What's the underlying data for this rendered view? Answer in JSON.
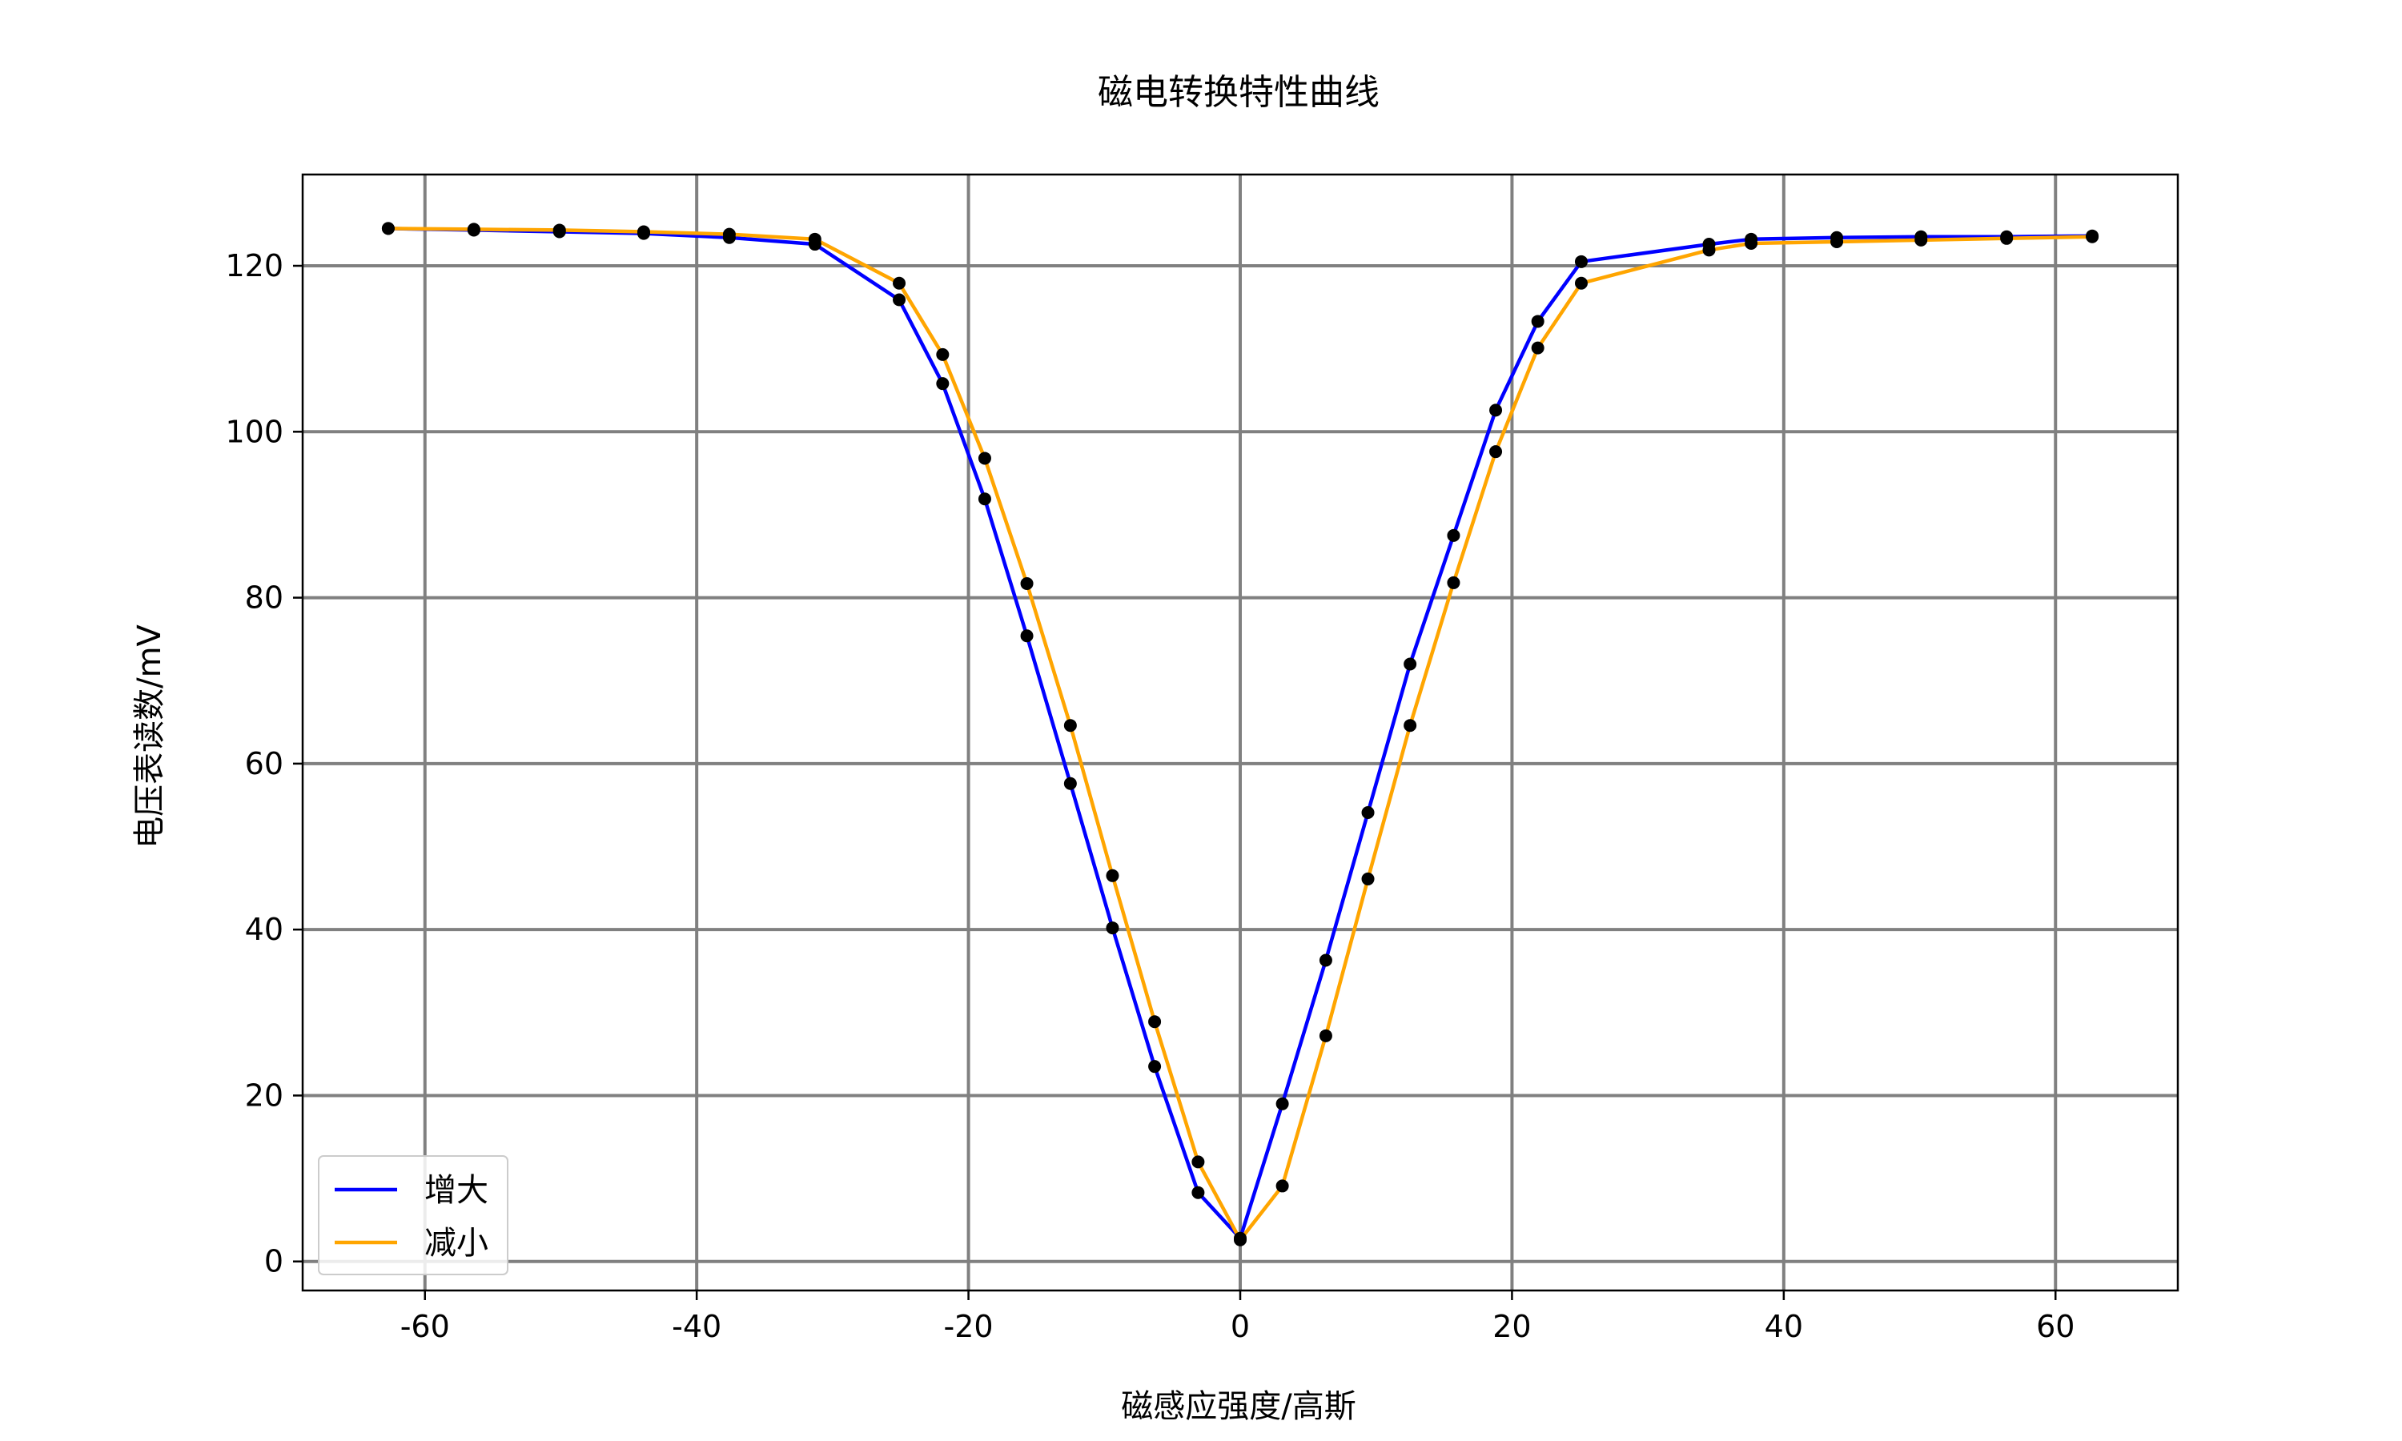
{
  "chart_data": {
    "type": "line",
    "title": "磁电转换特性曲线",
    "xlabel": "磁感应强度/高斯",
    "ylabel": "电压表读数/mV",
    "xlim": [
      -69,
      69
    ],
    "ylim": [
      -3.5,
      131
    ],
    "xticks": [
      -60,
      -40,
      -20,
      0,
      20,
      40,
      60
    ],
    "yticks": [
      0,
      20,
      40,
      60,
      80,
      100,
      120
    ],
    "grid": true,
    "legend_position": "lower-left",
    "marker_color": "#000000",
    "series": [
      {
        "name": "增大",
        "color": "#0000ff",
        "x": [
          -62.7,
          -56.4,
          -50.1,
          -43.9,
          -37.6,
          -31.3,
          -25.1,
          -21.9,
          -18.8,
          -15.7,
          -12.5,
          -9.4,
          -6.3,
          -3.1,
          0,
          3.1,
          6.3,
          9.4,
          12.5,
          15.7,
          18.8,
          21.9,
          25.1,
          34.5,
          37.6,
          43.9,
          50.1,
          56.4,
          62.7
        ],
        "y": [
          124.5,
          124.3,
          124.1,
          123.9,
          123.4,
          122.6,
          115.9,
          105.8,
          91.9,
          75.4,
          57.6,
          40.2,
          23.5,
          8.3,
          2.8,
          19.0,
          36.3,
          54.1,
          72.0,
          87.5,
          102.6,
          113.3,
          120.5,
          122.6,
          123.2,
          123.4,
          123.5,
          123.5,
          123.6
        ]
      },
      {
        "name": "减小",
        "color": "#ffa500",
        "x": [
          -62.7,
          -56.4,
          -50.1,
          -43.9,
          -37.6,
          -31.3,
          -25.1,
          -21.9,
          -18.8,
          -15.7,
          -12.5,
          -9.4,
          -6.3,
          -3.1,
          0,
          3.1,
          6.3,
          9.4,
          12.5,
          15.7,
          18.8,
          21.9,
          25.1,
          34.5,
          37.6,
          43.9,
          50.1,
          56.4,
          62.7
        ],
        "y": [
          124.5,
          124.4,
          124.3,
          124.1,
          123.8,
          123.2,
          117.9,
          109.3,
          96.8,
          81.7,
          64.6,
          46.5,
          28.9,
          12.0,
          2.6,
          9.1,
          27.2,
          46.1,
          64.6,
          81.8,
          97.6,
          110.1,
          117.9,
          121.9,
          122.7,
          122.9,
          123.1,
          123.3,
          123.5
        ]
      }
    ]
  }
}
